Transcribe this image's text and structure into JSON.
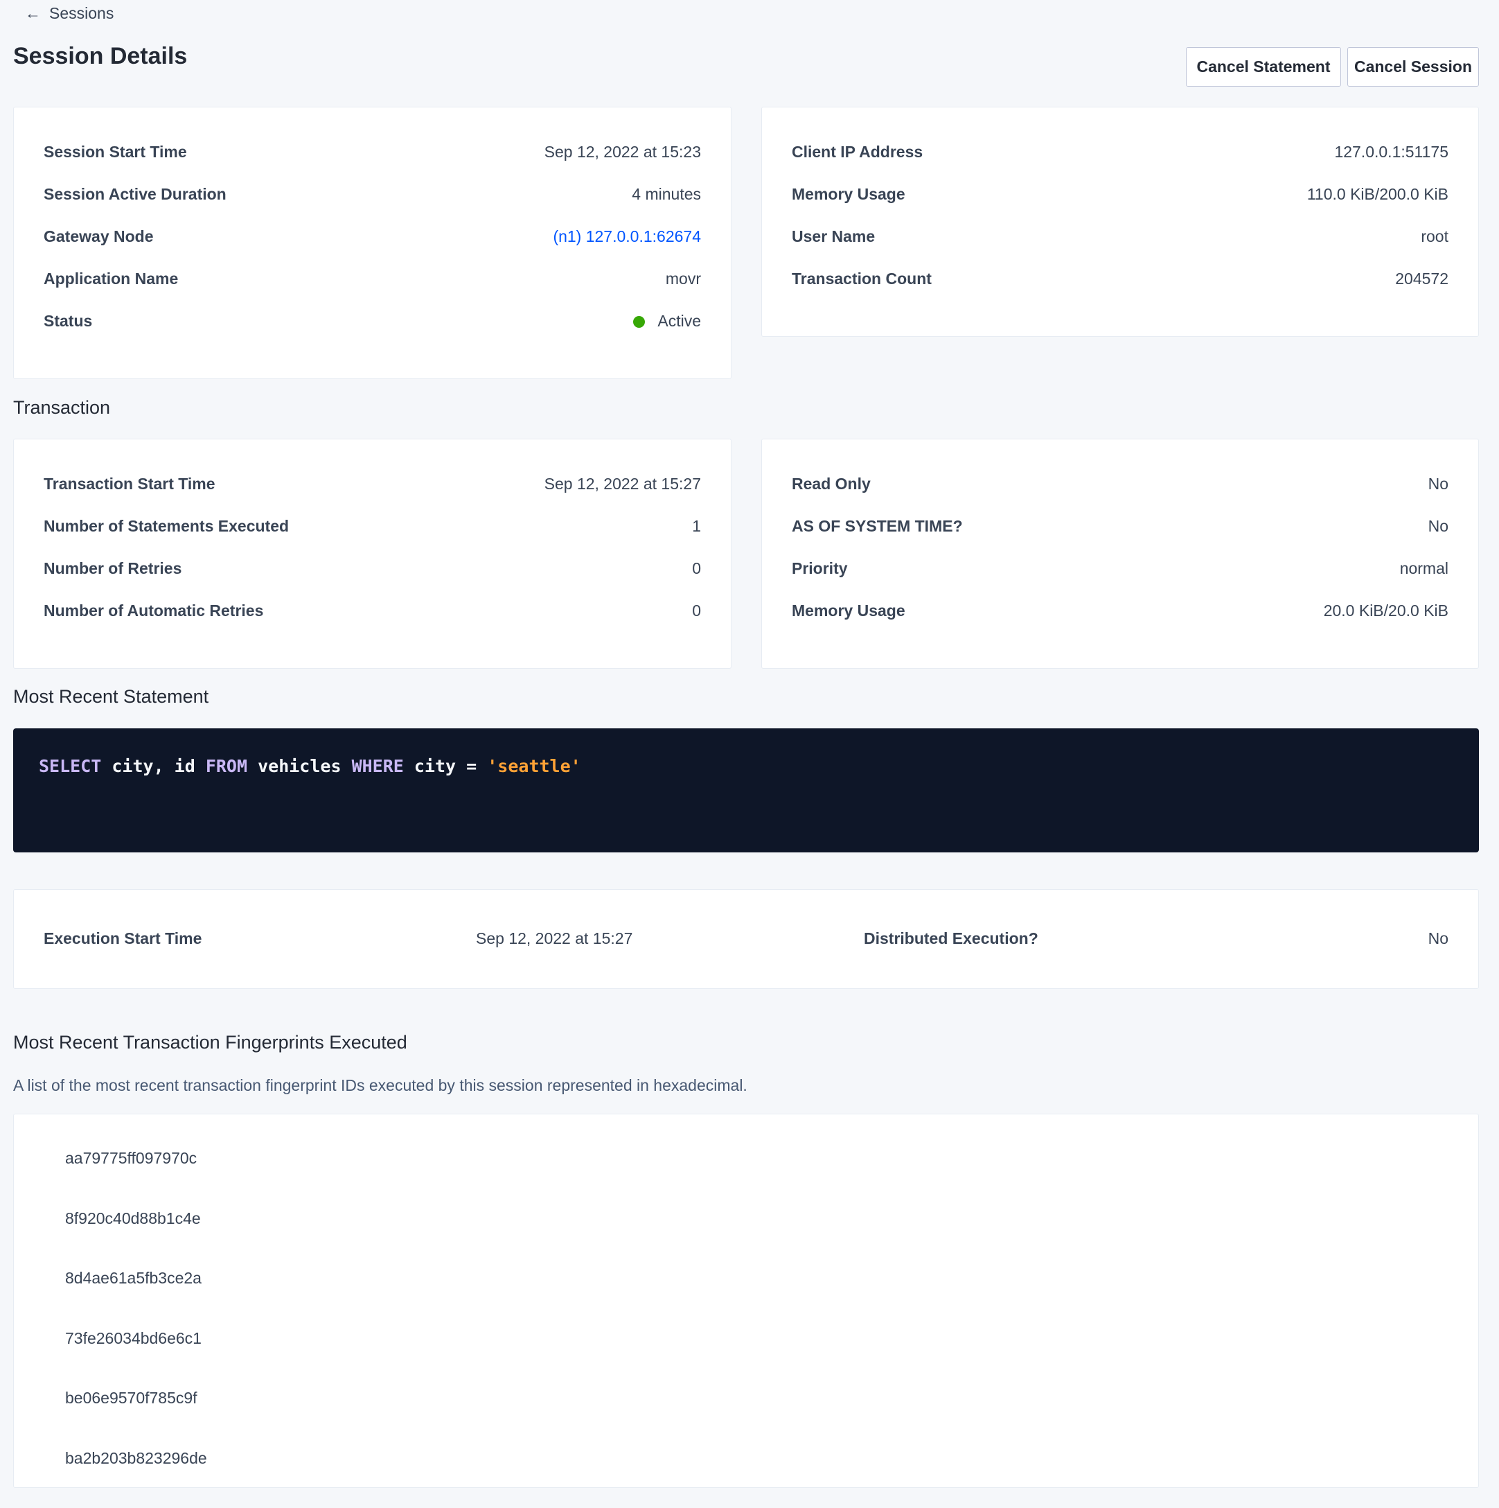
{
  "nav": {
    "back_label": "Sessions"
  },
  "header": {
    "title": "Session Details",
    "cancel_statement": "Cancel Statement",
    "cancel_session": "Cancel Session"
  },
  "session_left": [
    {
      "label": "Session Start Time",
      "value": "Sep 12, 2022 at 15:23"
    },
    {
      "label": "Session Active Duration",
      "value": "4 minutes"
    },
    {
      "label": "Gateway Node",
      "value": "(n1) 127.0.0.1:62674"
    },
    {
      "label": "Application Name",
      "value": "movr"
    },
    {
      "label": "Status",
      "value": "Active"
    }
  ],
  "session_right": [
    {
      "label": "Client IP Address",
      "value": "127.0.0.1:51175"
    },
    {
      "label": "Memory Usage",
      "value": "110.0 KiB/200.0 KiB"
    },
    {
      "label": "User Name",
      "value": "root"
    },
    {
      "label": "Transaction Count",
      "value": "204572"
    }
  ],
  "transaction": {
    "heading": "Transaction",
    "left": [
      {
        "label": "Transaction Start Time",
        "value": "Sep 12, 2022 at 15:27"
      },
      {
        "label": "Number of Statements Executed",
        "value": "1"
      },
      {
        "label": "Number of Retries",
        "value": "0"
      },
      {
        "label": "Number of Automatic Retries",
        "value": "0"
      }
    ],
    "right": [
      {
        "label": "Read Only",
        "value": "No"
      },
      {
        "label": "AS OF SYSTEM TIME?",
        "value": "No"
      },
      {
        "label": "Priority",
        "value": "normal"
      },
      {
        "label": "Memory Usage",
        "value": "20.0 KiB/20.0 KiB"
      }
    ]
  },
  "statement": {
    "heading": "Most Recent Statement",
    "tokens": [
      "SELECT",
      " city, id ",
      "FROM",
      " vehicles ",
      "WHERE",
      " city = ",
      "'seattle'"
    ],
    "execution_start_label": "Execution Start Time",
    "execution_start_value": "Sep 12, 2022 at 15:27",
    "distributed_label": "Distributed Execution?",
    "distributed_value": "No"
  },
  "fingerprints": {
    "heading": "Most Recent Transaction Fingerprints Executed",
    "description": "A list of the most recent transaction fingerprint IDs executed by this session represented in hexadecimal.",
    "items": [
      "aa79775ff097970c",
      "8f920c40d88b1c4e",
      "8d4ae61a5fb3ce2a",
      "73fe26034bd6e6c1",
      "be06e9570f785c9f",
      "ba2b203b823296de"
    ]
  },
  "colors": {
    "status_active": "#37a806",
    "link": "#0055ff",
    "code_bg": "#0e1628",
    "keyword": "#c9b8f5",
    "string": "#ffa236"
  }
}
